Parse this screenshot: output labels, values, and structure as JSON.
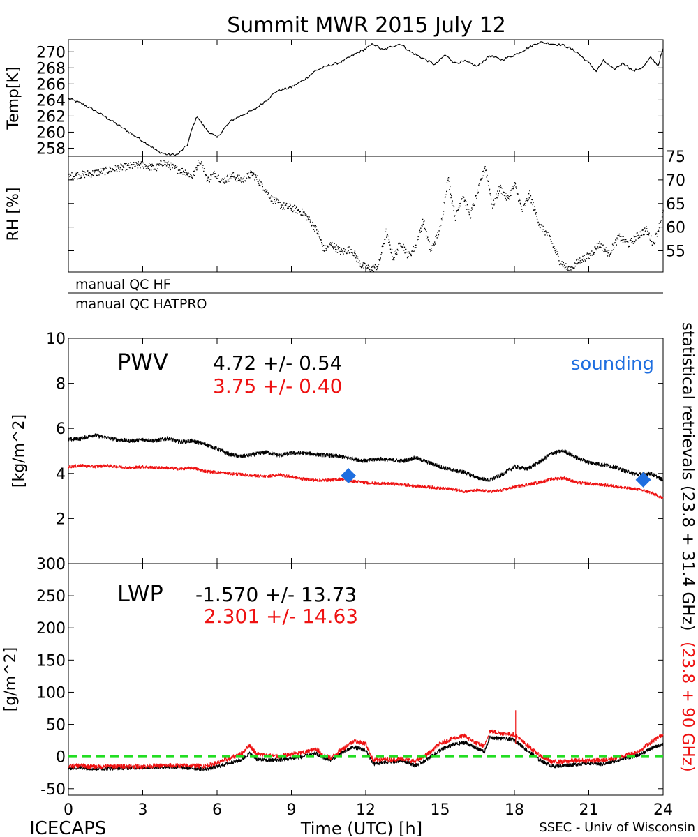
{
  "title": "Summit MWR 2015 July 12",
  "footer": {
    "left": "ICECAPS",
    "center": "Time (UTC) [h]",
    "right": "SSEC - Univ of Wisconsin"
  },
  "colors": {
    "black": "#000000",
    "red": "#ee1111",
    "blue": "#1f6fe0",
    "green": "#22dd22"
  },
  "chart_data": [
    {
      "id": "temp",
      "type": "line",
      "ylabel": "Temp[K]",
      "xlim": [
        0,
        24
      ],
      "ylim": [
        257,
        271.5
      ],
      "yticks": [
        258,
        260,
        262,
        264,
        266,
        268,
        270
      ],
      "tick_side": "left",
      "series": [
        {
          "color": "#000000",
          "x": [
            0,
            0.5,
            1,
            1.5,
            2,
            2.5,
            3,
            3.3,
            3.6,
            4,
            4.4,
            4.8,
            5,
            5.2,
            5.4,
            5.6,
            6,
            6.3,
            6.6,
            7,
            7.5,
            8,
            8.4,
            9,
            9.5,
            10,
            10.5,
            11,
            11.5,
            12,
            12.3,
            12.7,
            13,
            13.4,
            13.8,
            14.3,
            14.8,
            15.2,
            15.6,
            16,
            16.5,
            17,
            17.5,
            18,
            18.5,
            19,
            19.5,
            20,
            20.5,
            21,
            21.3,
            21.6,
            22,
            22.4,
            22.8,
            23.2,
            23.5,
            23.8,
            24
          ],
          "y": [
            264.2,
            263.6,
            262.8,
            261.9,
            260.9,
            259.9,
            258.9,
            258.3,
            257.6,
            257.2,
            257.2,
            258.4,
            260.5,
            262.0,
            261.0,
            260.2,
            259.3,
            260.5,
            261.5,
            262.1,
            262.8,
            264.0,
            265.1,
            265.6,
            266.5,
            267.7,
            268.3,
            268.7,
            269.6,
            270.4,
            271.0,
            270.2,
            270.6,
            271.0,
            270.0,
            269.2,
            268.4,
            269.6,
            268.6,
            268.8,
            268.2,
            269.5,
            269.0,
            269.6,
            270.4,
            271.2,
            271.0,
            270.8,
            270.0,
            268.6,
            267.6,
            268.9,
            267.8,
            268.6,
            267.6,
            268.1,
            269.3,
            268.3,
            270.4
          ]
        }
      ]
    },
    {
      "id": "rh",
      "type": "scatter",
      "ylabel": "RH [%]",
      "xlim": [
        0,
        24
      ],
      "ylim": [
        50.5,
        75
      ],
      "yticks": [
        55,
        60,
        65,
        70,
        75
      ],
      "tick_side": "right",
      "series": [
        {
          "color": "#000000",
          "x": [
            0,
            0.5,
            1,
            1.5,
            2,
            2.5,
            3,
            3.5,
            3.8,
            4.1,
            4.4,
            4.7,
            5,
            5.3,
            5.6,
            5.9,
            6.2,
            6.6,
            7,
            7.4,
            7.8,
            8.2,
            8.6,
            9,
            9.5,
            10,
            10.3,
            10.6,
            11,
            11.4,
            11.8,
            12.2,
            12.5,
            12.8,
            13.1,
            13.4,
            13.7,
            14,
            14.3,
            14.6,
            15,
            15.3,
            15.6,
            15.9,
            16.2,
            16.5,
            16.8,
            17.1,
            17.4,
            17.7,
            18,
            18.3,
            18.6,
            19,
            19.4,
            19.8,
            20.2,
            20.6,
            21,
            21.4,
            21.8,
            22.2,
            22.6,
            23,
            23.3,
            23.6,
            24
          ],
          "y": [
            70.8,
            71.2,
            71.5,
            72.0,
            72.6,
            73.0,
            73.3,
            72.5,
            73.8,
            73.0,
            72.2,
            71.8,
            70.8,
            74.6,
            70.0,
            71.5,
            69.8,
            71.0,
            70.0,
            71.5,
            69.0,
            66.0,
            64.6,
            64.2,
            63.0,
            59.5,
            55.3,
            56.5,
            54.8,
            55.5,
            52.0,
            51.2,
            52.0,
            59.0,
            53.5,
            57.0,
            54.0,
            56.0,
            61.5,
            55.0,
            60.0,
            70.5,
            62.0,
            67.0,
            62.5,
            67.5,
            73.0,
            64.5,
            68.5,
            66.0,
            69.0,
            63.5,
            67.0,
            60.5,
            58.0,
            53.0,
            51.0,
            53.0,
            54.0,
            56.5,
            54.5,
            58.0,
            56.5,
            58.5,
            59.5,
            56.5,
            63.5
          ]
        }
      ]
    },
    {
      "id": "qc",
      "type": "table",
      "rows": [
        "manual QC HF",
        "manual QC HATPRO"
      ]
    },
    {
      "id": "pwv",
      "type": "line",
      "ylabel": "[kg/m^2]",
      "xlim": [
        0,
        24
      ],
      "ylim": [
        0,
        10
      ],
      "yticks": [
        0,
        2,
        4,
        6,
        8,
        10
      ],
      "tick_side": "left",
      "annotation_label": "PWV",
      "stats": [
        {
          "text": "4.72 +/-   0.54",
          "color": "#000000"
        },
        {
          "text": "3.75 +/-   0.40",
          "color": "#ee1111"
        }
      ],
      "legend_text": "sounding",
      "series": [
        {
          "color": "#000000",
          "x": [
            0,
            0.5,
            1,
            1.5,
            2,
            2.5,
            3,
            3.5,
            4,
            4.5,
            5,
            5.5,
            6,
            6.5,
            7,
            7.5,
            8,
            8.5,
            9,
            9.5,
            10,
            10.5,
            11,
            11.5,
            12,
            12.5,
            13,
            13.5,
            14,
            14.5,
            15,
            15.5,
            16,
            16.5,
            17,
            17.5,
            18,
            18.5,
            19,
            19.5,
            20,
            20.5,
            21,
            21.5,
            22,
            22.5,
            23,
            23.5,
            24
          ],
          "y": [
            5.5,
            5.55,
            5.7,
            5.6,
            5.5,
            5.45,
            5.5,
            5.45,
            5.55,
            5.4,
            5.45,
            5.3,
            5.1,
            4.85,
            4.75,
            4.85,
            4.95,
            4.8,
            4.9,
            4.9,
            4.85,
            4.8,
            4.75,
            4.65,
            4.55,
            4.65,
            4.6,
            4.55,
            4.7,
            4.5,
            4.3,
            4.15,
            4.05,
            3.8,
            3.7,
            3.95,
            4.3,
            4.2,
            4.5,
            4.9,
            5.0,
            4.7,
            4.5,
            4.4,
            4.3,
            4.1,
            3.95,
            4.0,
            3.7
          ]
        },
        {
          "color": "#ee1111",
          "x": [
            0,
            0.5,
            1,
            1.5,
            2,
            2.5,
            3,
            3.5,
            4,
            4.5,
            5,
            5.5,
            6,
            6.5,
            7,
            7.5,
            8,
            8.5,
            9,
            9.5,
            10,
            10.5,
            11,
            11.5,
            12,
            12.5,
            13,
            13.5,
            14,
            14.5,
            15,
            15.5,
            16,
            16.5,
            17,
            17.5,
            18,
            18.5,
            19,
            19.5,
            20,
            20.5,
            21,
            21.5,
            22,
            22.5,
            23,
            23.5,
            24
          ],
          "y": [
            4.3,
            4.35,
            4.3,
            4.35,
            4.3,
            4.25,
            4.3,
            4.25,
            4.25,
            4.2,
            4.25,
            4.1,
            4.05,
            4.0,
            3.95,
            3.9,
            3.85,
            3.95,
            3.85,
            3.75,
            3.7,
            3.7,
            3.75,
            3.65,
            3.6,
            3.55,
            3.55,
            3.5,
            3.45,
            3.4,
            3.35,
            3.3,
            3.2,
            3.25,
            3.2,
            3.25,
            3.4,
            3.5,
            3.6,
            3.75,
            3.8,
            3.6,
            3.55,
            3.5,
            3.45,
            3.35,
            3.3,
            3.15,
            2.9
          ]
        },
        {
          "type": "scatter",
          "marker": "diamond",
          "color": "#1f6fe0",
          "x": [
            11.3,
            23.2
          ],
          "y": [
            3.9,
            3.72
          ]
        }
      ]
    },
    {
      "id": "lwp",
      "type": "line",
      "ylabel": "[g/m^2]",
      "xlabel": "Time (UTC) [h]",
      "xlim": [
        0,
        24
      ],
      "ylim": [
        -60,
        300
      ],
      "yticks": [
        -50,
        0,
        50,
        100,
        150,
        200,
        250,
        300
      ],
      "xticks": [
        0,
        3,
        6,
        9,
        12,
        15,
        18,
        21,
        24
      ],
      "tick_side": "left",
      "annotation_label": "LWP",
      "stats": [
        {
          "text": "-1.570 +/-   13.73",
          "color": "#000000"
        },
        {
          "text": "2.301 +/-   14.63",
          "color": "#ee1111"
        }
      ],
      "reference_line": {
        "y": 0,
        "color": "#22dd22",
        "style": "dashed"
      },
      "series": [
        {
          "color": "#000000",
          "x": [
            0,
            0.5,
            1,
            2,
            3,
            4,
            5,
            5.5,
            6,
            6.5,
            7,
            7.3,
            7.6,
            8,
            8.5,
            9,
            9.5,
            10,
            10.3,
            10.6,
            11,
            11.5,
            12,
            12.3,
            12.6,
            13,
            13.5,
            14,
            14.5,
            15,
            15.5,
            16,
            16.5,
            16.8,
            17,
            17.5,
            18,
            18.5,
            19,
            19.5,
            20,
            20.5,
            21,
            21.5,
            22,
            22.5,
            23,
            23.5,
            24
          ],
          "y": [
            -18,
            -17,
            -19,
            -18,
            -17,
            -16,
            -18,
            -20,
            -16,
            -10,
            -5,
            5,
            -4,
            -6,
            -5,
            -3,
            0,
            5,
            -3,
            -5,
            5,
            15,
            10,
            -12,
            -10,
            -8,
            -6,
            -14,
            -4,
            10,
            18,
            22,
            12,
            8,
            30,
            28,
            26,
            10,
            -5,
            -15,
            -14,
            -12,
            -10,
            -12,
            -8,
            -2,
            2,
            12,
            20
          ]
        },
        {
          "color": "#ee1111",
          "x": [
            0,
            0.5,
            1,
            2,
            3,
            4,
            5,
            5.5,
            6,
            6.5,
            7,
            7.3,
            7.6,
            8,
            8.5,
            9,
            9.5,
            10,
            10.3,
            10.6,
            11,
            11.5,
            12,
            12.3,
            12.6,
            13,
            13.5,
            14,
            14.5,
            15,
            15.5,
            16,
            16.5,
            16.8,
            17,
            17.5,
            18,
            18.5,
            19,
            19.5,
            20,
            20.5,
            21,
            21.5,
            22,
            22.5,
            23,
            23.5,
            24
          ],
          "y": [
            -15,
            -14,
            -16,
            -15,
            -15,
            -14,
            -14,
            -15,
            -10,
            -3,
            5,
            18,
            4,
            2,
            0,
            4,
            6,
            12,
            2,
            -2,
            10,
            24,
            20,
            -6,
            -4,
            -5,
            -3,
            -8,
            4,
            20,
            28,
            32,
            20,
            16,
            40,
            36,
            34,
            18,
            2,
            -8,
            -8,
            -6,
            -6,
            -6,
            -3,
            2,
            8,
            22,
            35
          ]
        }
      ]
    }
  ],
  "side_labels": {
    "black_text": "statistical retrievals (23.8 + 31.4 GHz)",
    "red_text": "(23.8 + 90 GHz)"
  }
}
